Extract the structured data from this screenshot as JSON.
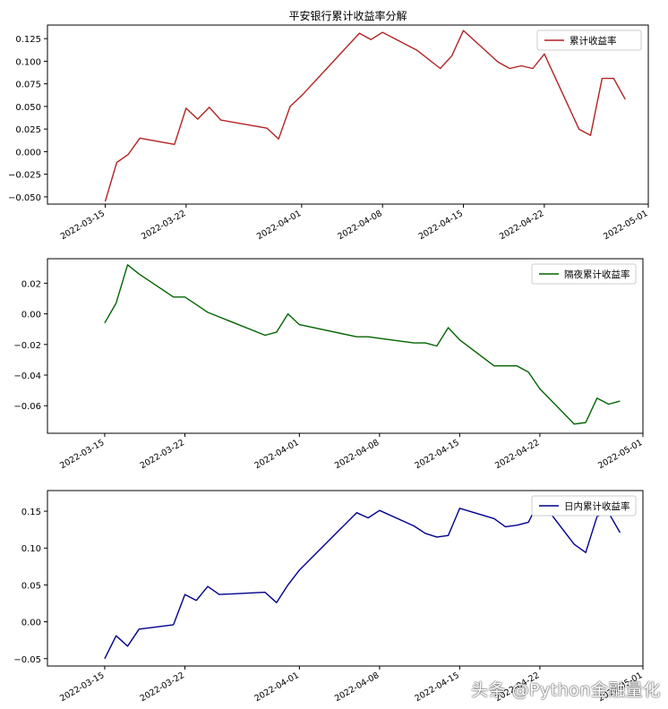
{
  "chart_data": [
    {
      "type": "line",
      "title": "平安银行累计收益率分解",
      "xlabel": "",
      "ylabel": "",
      "legend": "top-right",
      "grid": false,
      "x_ticks": [
        "2022-03-15",
        "2022-03-22",
        "2022-04-01",
        "2022-04-08",
        "2022-04-15",
        "2022-04-22",
        "2022-05-01"
      ],
      "y_ticks": [
        "−0.050",
        "−0.025",
        "0.000",
        "0.025",
        "0.050",
        "0.075",
        "0.100",
        "0.125"
      ],
      "ylim": [
        -0.058,
        0.14
      ],
      "xlim": [
        "2022-03-10",
        "2022-05-01"
      ],
      "series": [
        {
          "name": "累计收益率",
          "color": "#b22222",
          "x": [
            "2022-03-15",
            "2022-03-16",
            "2022-03-17",
            "2022-03-18",
            "2022-03-21",
            "2022-03-22",
            "2022-03-23",
            "2022-03-24",
            "2022-03-25",
            "2022-03-29",
            "2022-03-30",
            "2022-03-31",
            "2022-04-01",
            "2022-04-06",
            "2022-04-07",
            "2022-04-08",
            "2022-04-11",
            "2022-04-13",
            "2022-04-14",
            "2022-04-15",
            "2022-04-18",
            "2022-04-19",
            "2022-04-20",
            "2022-04-21",
            "2022-04-22",
            "2022-04-25",
            "2022-04-26",
            "2022-04-27",
            "2022-04-28",
            "2022-04-29"
          ],
          "values": [
            -0.055,
            -0.012,
            -0.003,
            0.015,
            0.008,
            0.048,
            0.036,
            0.049,
            0.035,
            0.026,
            0.014,
            0.05,
            0.062,
            0.131,
            0.124,
            0.132,
            0.112,
            0.092,
            0.106,
            0.134,
            0.099,
            0.092,
            0.095,
            0.092,
            0.108,
            0.025,
            0.018,
            0.081,
            0.081,
            0.058
          ]
        }
      ]
    },
    {
      "type": "line",
      "title": "",
      "xlabel": "",
      "ylabel": "",
      "legend": "top-right",
      "grid": false,
      "x_ticks": [
        "2022-03-15",
        "2022-03-22",
        "2022-04-01",
        "2022-04-08",
        "2022-04-15",
        "2022-04-22",
        "2022-05-01"
      ],
      "y_ticks": [
        "0.02",
        "0.00",
        "−0.02",
        "−0.04",
        "−0.06"
      ],
      "ylim": [
        -0.078,
        0.036
      ],
      "xlim": [
        "2022-03-10",
        "2022-05-01"
      ],
      "series": [
        {
          "name": "隔夜累计收益率",
          "color": "#006400",
          "x": [
            "2022-03-15",
            "2022-03-16",
            "2022-03-17",
            "2022-03-18",
            "2022-03-21",
            "2022-03-22",
            "2022-03-23",
            "2022-03-24",
            "2022-03-25",
            "2022-03-29",
            "2022-03-30",
            "2022-03-31",
            "2022-04-01",
            "2022-04-06",
            "2022-04-07",
            "2022-04-08",
            "2022-04-11",
            "2022-04-12",
            "2022-04-13",
            "2022-04-14",
            "2022-04-15",
            "2022-04-18",
            "2022-04-19",
            "2022-04-20",
            "2022-04-21",
            "2022-04-22",
            "2022-04-25",
            "2022-04-26",
            "2022-04-27",
            "2022-04-28",
            "2022-04-29"
          ],
          "values": [
            -0.006,
            0.007,
            0.032,
            0.026,
            0.011,
            0.011,
            0.006,
            0.001,
            -0.002,
            -0.014,
            -0.012,
            0.0,
            -0.007,
            -0.015,
            -0.015,
            -0.016,
            -0.019,
            -0.019,
            -0.021,
            -0.009,
            -0.017,
            -0.034,
            -0.034,
            -0.034,
            -0.038,
            -0.049,
            -0.072,
            -0.071,
            -0.055,
            -0.059,
            -0.057
          ]
        }
      ]
    },
    {
      "type": "line",
      "title": "",
      "xlabel": "",
      "ylabel": "",
      "legend": "top-right",
      "grid": false,
      "x_ticks": [
        "2022-03-15",
        "2022-03-22",
        "2022-04-01",
        "2022-04-08",
        "2022-04-15",
        "2022-04-22",
        "2022-05-01"
      ],
      "y_ticks": [
        "0.15",
        "0.10",
        "0.05",
        "0.00",
        "−0.05"
      ],
      "ylim": [
        -0.06,
        0.178
      ],
      "xlim": [
        "2022-03-10",
        "2022-05-01"
      ],
      "series": [
        {
          "name": "日内累计收益率",
          "color": "#00008b",
          "x": [
            "2022-03-15",
            "2022-03-16",
            "2022-03-17",
            "2022-03-18",
            "2022-03-21",
            "2022-03-22",
            "2022-03-23",
            "2022-03-24",
            "2022-03-25",
            "2022-03-29",
            "2022-03-30",
            "2022-03-31",
            "2022-04-01",
            "2022-04-06",
            "2022-04-07",
            "2022-04-08",
            "2022-04-11",
            "2022-04-12",
            "2022-04-13",
            "2022-04-14",
            "2022-04-15",
            "2022-04-18",
            "2022-04-19",
            "2022-04-20",
            "2022-04-21",
            "2022-04-22",
            "2022-04-25",
            "2022-04-26",
            "2022-04-27",
            "2022-04-28",
            "2022-04-29"
          ],
          "values": [
            -0.05,
            -0.019,
            -0.033,
            -0.01,
            -0.004,
            0.037,
            0.029,
            0.048,
            0.037,
            0.04,
            0.026,
            0.05,
            0.07,
            0.148,
            0.141,
            0.151,
            0.13,
            0.12,
            0.115,
            0.117,
            0.154,
            0.14,
            0.129,
            0.131,
            0.135,
            0.166,
            0.105,
            0.094,
            0.143,
            0.148,
            0.121
          ]
        }
      ]
    }
  ],
  "watermark": "头条 @Python金融量化"
}
